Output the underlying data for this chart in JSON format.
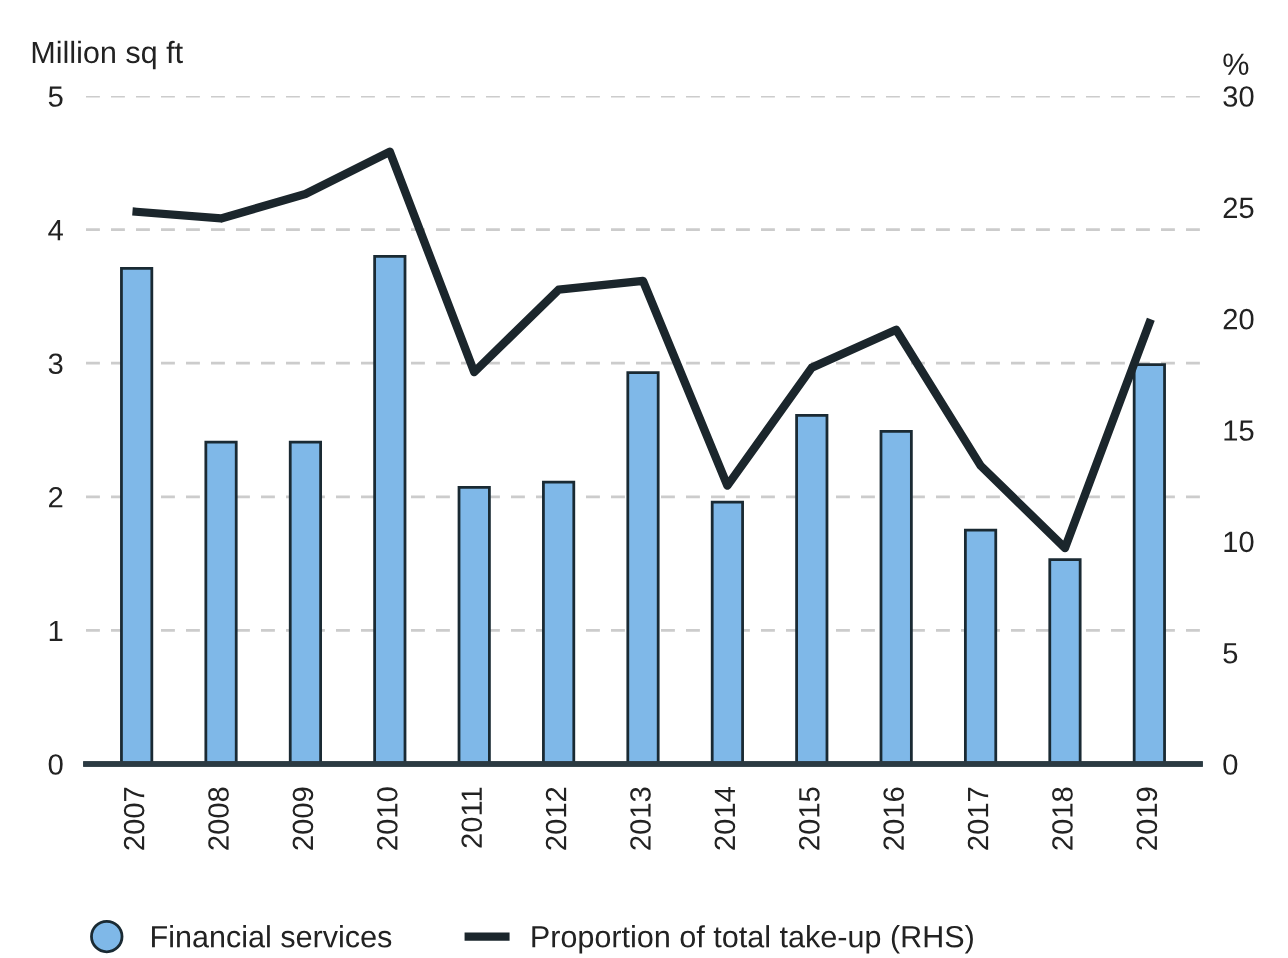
{
  "chart_data": {
    "type": "bar",
    "categories": [
      "2007",
      "2008",
      "2009",
      "2010",
      "2011",
      "2012",
      "2013",
      "2014",
      "2015",
      "2016",
      "2017",
      "2018",
      "2019"
    ],
    "series": [
      {
        "name": "Financial services",
        "color": "#7fb8e8",
        "values": [
          3.71,
          2.41,
          2.41,
          3.8,
          2.07,
          2.11,
          2.93,
          1.96,
          2.61,
          2.49,
          1.75,
          1.53,
          2.99
        ]
      },
      {
        "name": "Proportion of total take-up (RHS)",
        "type": "line",
        "axis": "y2",
        "color": "#1b262c",
        "values": [
          24.8,
          24.5,
          25.6,
          27.5,
          17.6,
          21.3,
          21.7,
          12.5,
          17.8,
          19.5,
          13.4,
          9.7,
          19.8
        ]
      }
    ],
    "ylabel": "Million sq ft",
    "y2label": "%",
    "ylim": [
      0,
      5
    ],
    "yticks": [
      0,
      1,
      2,
      3,
      4,
      5
    ],
    "y2lim": [
      0,
      30
    ],
    "y2ticks": [
      0,
      5,
      10,
      15,
      20,
      25,
      30
    ],
    "grid": "y",
    "legend": "bottom",
    "marker": "none",
    "line_style": "solid"
  }
}
